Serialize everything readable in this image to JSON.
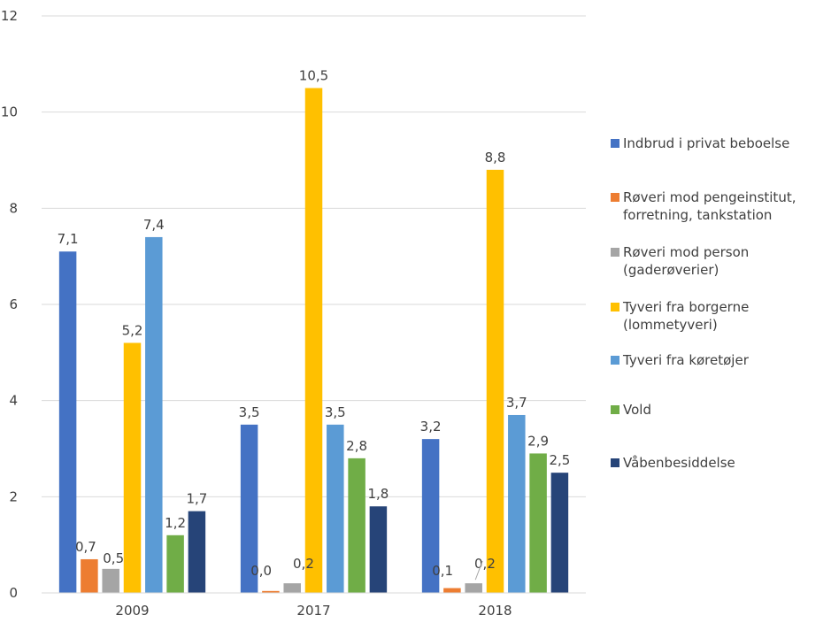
{
  "chart_data": {
    "type": "bar",
    "title": "",
    "xlabel": "",
    "ylabel": "",
    "ylim": [
      0,
      12
    ],
    "yticks": [
      0,
      2,
      4,
      6,
      8,
      10,
      12
    ],
    "grid": true,
    "legend_position": "right",
    "categories": [
      "2009",
      "2017",
      "2018"
    ],
    "series": [
      {
        "name": "Indbrud i privat beboelse",
        "color": "#4472C4",
        "values": [
          7.1,
          3.5,
          3.2
        ],
        "labels": [
          "7,1",
          "3,5",
          "3,2"
        ]
      },
      {
        "name": "Røveri mod pengeinstitut, forretning, tankstation",
        "legend_lines": [
          "Røveri mod pengeinstitut,",
          "forretning, tankstation"
        ],
        "color": "#ED7D31",
        "values": [
          0.7,
          0.04,
          0.1
        ],
        "labels": [
          "0,7",
          "0,0",
          "0,1"
        ]
      },
      {
        "name": "Røveri mod person (gaderøverier)",
        "legend_lines": [
          "Røveri mod person",
          "(gaderøverier)"
        ],
        "color": "#A5A5A5",
        "values": [
          0.5,
          0.2,
          0.2
        ],
        "labels": [
          "0,5",
          "0,2",
          "0,2"
        ]
      },
      {
        "name": "Tyveri fra borgerne (lommetyveri)",
        "legend_lines": [
          "Tyveri fra borgerne",
          "(lommetyveri)"
        ],
        "color": "#FFC000",
        "values": [
          5.2,
          10.5,
          8.8
        ],
        "labels": [
          "5,2",
          "10,5",
          "8,8"
        ]
      },
      {
        "name": "Tyveri fra køretøjer",
        "color": "#5B9BD5",
        "values": [
          7.4,
          3.5,
          3.7
        ],
        "labels": [
          "7,4",
          "3,5",
          "3,7"
        ]
      },
      {
        "name": "Vold",
        "color": "#70AD47",
        "values": [
          1.2,
          2.8,
          2.9
        ],
        "labels": [
          "1,2",
          "2,8",
          "2,9"
        ]
      },
      {
        "name": "Våbenbesiddelse",
        "color": "#264478",
        "values": [
          1.7,
          1.8,
          2.5
        ],
        "labels": [
          "1,7",
          "1,8",
          "2,5"
        ]
      }
    ]
  }
}
